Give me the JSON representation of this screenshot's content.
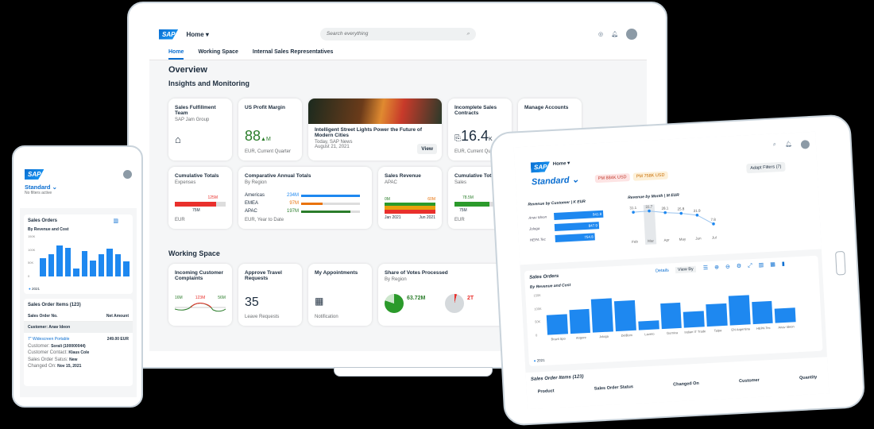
{
  "laptop": {
    "shell": {
      "home": "Home ▾",
      "search_placeholder": "Search everything",
      "logo": "SAP"
    },
    "tabs": [
      "Home",
      "Working Space",
      "Internal Sales Representatives"
    ],
    "title": "Overview",
    "section1": "Insights and Monitoring",
    "section2": "Working Space",
    "cards": {
      "c1": {
        "title": "Sales Fulfillment Team",
        "sub": "SAP Jam Group"
      },
      "c2": {
        "title": "US Profit Margin",
        "value": "88",
        "unit": "M",
        "foot": "EUR, Current Quarter"
      },
      "c3": {
        "title": "Intelligent Street Lights Power the Future of Modern Cities",
        "sub1": "Today, SAP News",
        "sub2": "August 21, 2021",
        "button": "View"
      },
      "c4": {
        "title": "Incomplete Sales Contracts",
        "value": "16.4",
        "unit": "K",
        "foot": "EUR, Current Quarter"
      },
      "c5": {
        "title": "Manage Accounts"
      },
      "c6": {
        "title": "Cumulative Totals",
        "sub": "Expenses",
        "v1": "125M",
        "v2": "75M",
        "foot": "EUR"
      },
      "c7": {
        "title": "Comparative Annual Totals",
        "sub": "By Region",
        "foot": "EUR, Year to Date",
        "rows": [
          {
            "label": "Americas",
            "value": "234M",
            "pct": 100,
            "color": "#1e88f0"
          },
          {
            "label": "EMEA",
            "value": "97M",
            "pct": 37,
            "color": "#e9730c"
          },
          {
            "label": "APAC",
            "value": "197M",
            "pct": 84,
            "color": "#2b7d2b"
          }
        ]
      },
      "c8": {
        "title": "Sales Revenue",
        "sub": "APAC",
        "v1": "0M",
        "v2": "60M",
        "x1": "Jan 2021",
        "x2": "Jun 2021"
      },
      "c9": {
        "title": "Cumulative Totals",
        "sub": "Sales",
        "v1": "78.5M",
        "v2": "75M",
        "foot": "EUR"
      },
      "w1": {
        "title": "Incoming Customer Complaints",
        "v1": "16M",
        "v2": "123M",
        "v3": "56M"
      },
      "w2": {
        "title": "Approve Travel Requests",
        "value": "35",
        "foot": "Leave Requests"
      },
      "w3": {
        "title": "My Appointments",
        "foot": "Notification"
      },
      "w4": {
        "title": "Share of Votes Processed",
        "sub": "By Region",
        "v1": "63.72M",
        "v2": "2T"
      }
    }
  },
  "phone": {
    "logo": "SAP",
    "variant": "Standard ⌄",
    "filters": "No filters active",
    "chart_title": "Sales Orders",
    "chart_sub": "By Revenue and Cost",
    "legend": "2021",
    "yticks": [
      "150K",
      "100K",
      "50K",
      "0"
    ],
    "table_title": "Sales Order Items (123)",
    "col1": "Sales Order No.",
    "col2": "Net Amount",
    "group": "Customer: Anav Ideon",
    "item": {
      "name": "7\" Widescreen Portable",
      "amount": "249.00 EUR",
      "l1k": "Customer:",
      "l1v": "Sorali (100000044)",
      "l2k": "Customer Contact:",
      "l2v": "Klaus Cole",
      "l3k": "Sales Order Satus:",
      "l3v": "New",
      "l4k": "Changed On:",
      "l4v": "Nov 15, 2021"
    }
  },
  "tablet": {
    "logo": "SAP",
    "home": "Home ▾",
    "variant": "Standard ⌄",
    "chip1": "PM 884K USD",
    "chip2": "PM 758K USD",
    "adapt": "Adapt Filters (7)",
    "rev_customer": {
      "title": "Revenue by Customer | K EUR",
      "rows": [
        {
          "label": "Anav Ideon",
          "value": "941.8"
        },
        {
          "label": "Jologa",
          "value": "847.9"
        },
        {
          "label": "HEPA Tec",
          "value": "754.8"
        }
      ]
    },
    "rev_month": {
      "title": "Revenue by Month | M EUR"
    },
    "orders_title": "Sales Orders",
    "details": "Details",
    "view_by": "View By",
    "chart_sub": "By Revenue and Cost",
    "legend": "2021",
    "yticks": [
      "150K",
      "100K",
      "50K",
      "0"
    ],
    "table_title": "Sales Order Items (123)",
    "cols": [
      "Product",
      "Sales Order Status",
      "Changed On",
      "Customer",
      "Quantity"
    ]
  },
  "chart_data": [
    {
      "type": "bar",
      "title": "Sales Orders",
      "subtitle": "By Revenue and Cost",
      "ylim": [
        0,
        150000
      ],
      "series": [
        {
          "name": "2021",
          "values": [
            70000,
            85000,
            118000,
            108000,
            30000,
            95000,
            60000,
            85000,
            105000,
            85000,
            58000
          ]
        }
      ]
    },
    {
      "type": "bar",
      "title": "Sales Orders",
      "subtitle": "By Revenue and Cost",
      "ylim": [
        0,
        150000
      ],
      "categories": [
        "Brazil Spo",
        "Angore",
        "Jologa",
        "DelBom",
        "Lavero",
        "Gurnica",
        "Indian IT Trade",
        "Talpa",
        "EN Argentina",
        "HEPA Tec",
        "Anav Ideon"
      ],
      "series": [
        {
          "name": "2021",
          "values": [
            75000,
            90000,
            125000,
            115000,
            32000,
            95000,
            60000,
            85000,
            110000,
            85000,
            55000
          ]
        }
      ]
    },
    {
      "type": "line",
      "title": "Revenue by Month | M EUR",
      "categories": [
        "Feb",
        "Mar",
        "Apr",
        "May",
        "Jun",
        "Jul"
      ],
      "values": [
        31.1,
        31.7,
        28.1,
        25.8,
        21.9,
        7.8
      ]
    }
  ],
  "colors": {
    "accent": "#0a6ed1",
    "bar": "#1e88f0",
    "positive": "#2b7d2b",
    "negative": "#e9302c",
    "warning": "#e9730c"
  }
}
